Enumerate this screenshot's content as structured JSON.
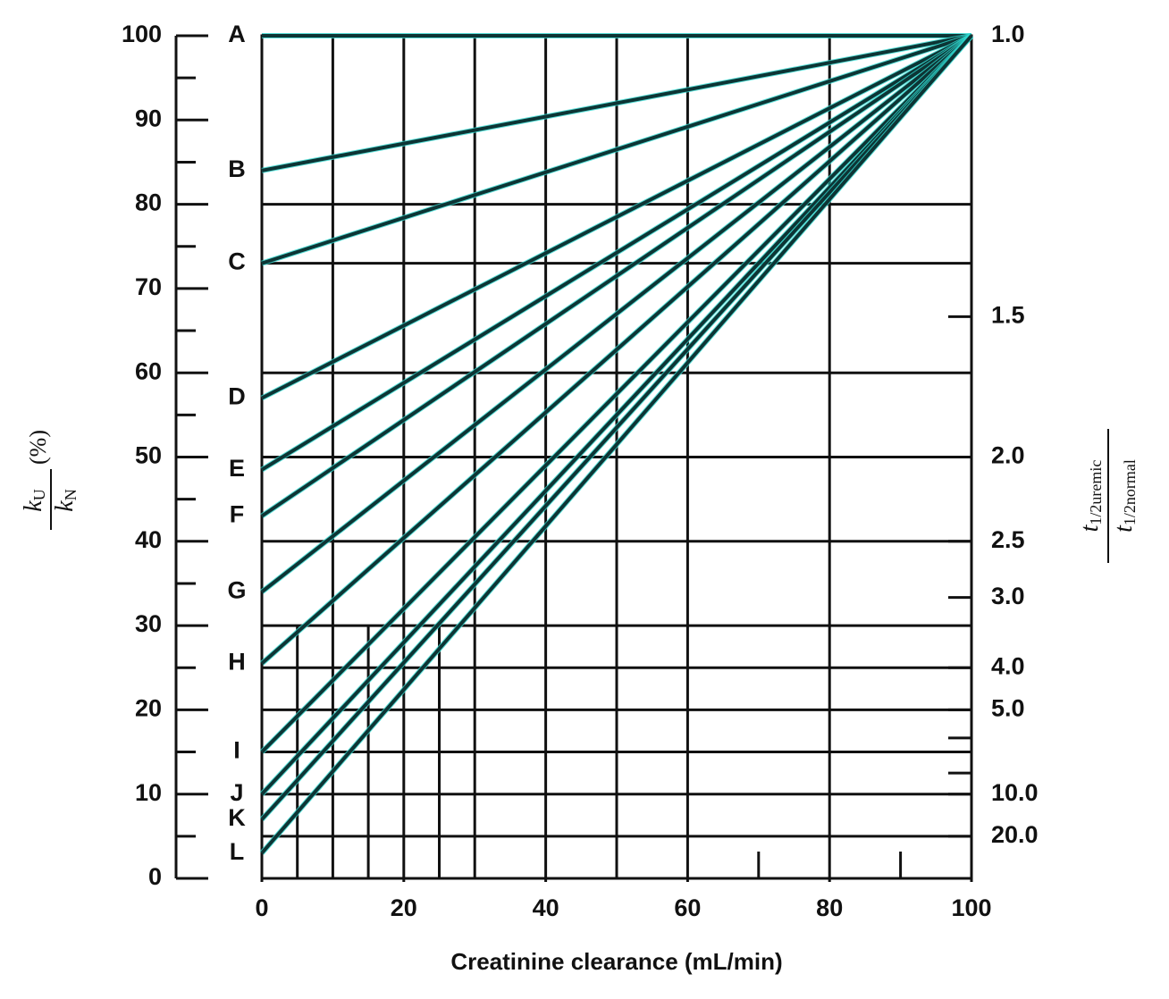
{
  "chart_data": {
    "type": "line",
    "xlabel": "Creatinine clearance (mL/min)",
    "ylabel": {
      "num": [
        "k",
        "U"
      ],
      "den": [
        "k",
        "N"
      ],
      "unit": "(%)"
    },
    "y2label": {
      "num": [
        "t",
        "1/2uremic"
      ],
      "den": [
        "t",
        "1/2normal"
      ]
    },
    "x": [
      0,
      100
    ],
    "series": [
      {
        "name": "A",
        "values": [
          100,
          100
        ]
      },
      {
        "name": "B",
        "values": [
          84,
          100
        ]
      },
      {
        "name": "C",
        "values": [
          73,
          100
        ]
      },
      {
        "name": "D",
        "values": [
          57,
          100
        ]
      },
      {
        "name": "E",
        "values": [
          48.5,
          100
        ]
      },
      {
        "name": "F",
        "values": [
          43,
          100
        ]
      },
      {
        "name": "G",
        "values": [
          34,
          100
        ]
      },
      {
        "name": "H",
        "values": [
          25.5,
          100
        ]
      },
      {
        "name": "I",
        "values": [
          15,
          100
        ]
      },
      {
        "name": "J",
        "values": [
          10,
          100
        ]
      },
      {
        "name": "K",
        "values": [
          7,
          100
        ]
      },
      {
        "name": "L",
        "values": [
          3,
          100
        ]
      }
    ],
    "color": "#0d3535",
    "xlim": [
      0,
      100
    ],
    "xticks": [
      0,
      20,
      40,
      60,
      80,
      100
    ],
    "xminor": [
      70,
      90
    ],
    "ylim": [
      0,
      100
    ],
    "yticks": [
      0,
      10,
      20,
      30,
      40,
      50,
      60,
      70,
      80,
      90,
      100
    ],
    "yminor": [
      5,
      15,
      25,
      35,
      45,
      55,
      65,
      75,
      85,
      95
    ],
    "y2scale": "reciprocal",
    "y2ticks": [
      {
        "value": 1,
        "label": "1.0"
      },
      {
        "value": 1.5,
        "label": "1.5"
      },
      {
        "value": 2,
        "label": "2.0"
      },
      {
        "value": 2.5,
        "label": "2.5"
      },
      {
        "value": 3,
        "label": "3.0"
      },
      {
        "value": 4,
        "label": "4.0"
      },
      {
        "value": 5,
        "label": "5.0"
      },
      {
        "value": 10,
        "label": "10.0"
      },
      {
        "value": 20,
        "label": "20.0"
      }
    ],
    "y2minor": [
      6,
      8
    ],
    "xgrid": [
      10,
      20,
      30,
      40,
      50,
      60,
      80
    ],
    "xgrid_partial": {
      "values": [
        5,
        15,
        25
      ],
      "top": 30
    },
    "ygrid": [
      80,
      73,
      60,
      50,
      40,
      30,
      25,
      20,
      15,
      10,
      5
    ]
  }
}
